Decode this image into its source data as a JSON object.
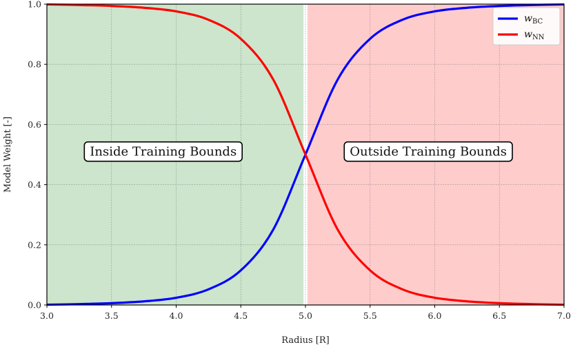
{
  "chart_data": {
    "type": "line",
    "xlabel": "Radius [R]",
    "ylabel": "Model Weight [-]",
    "xlim": [
      3.0,
      7.0
    ],
    "ylim": [
      0.0,
      1.0
    ],
    "xticks": [
      "3.0",
      "3.5",
      "4.0",
      "4.5",
      "5.0",
      "5.5",
      "6.0",
      "6.5",
      "7.0"
    ],
    "yticks": [
      "0.0",
      "0.2",
      "0.4",
      "0.6",
      "0.8",
      "1.0"
    ],
    "grid": true,
    "legend_position": "top-right",
    "regions": [
      {
        "label": "Inside Training Bounds",
        "x_range": [
          3.0,
          4.985
        ],
        "color": "#cce5cc",
        "label_x": 3.9,
        "label_y": 0.51
      },
      {
        "label": "Outside Training Bounds",
        "x_range": [
          5.015,
          7.0
        ],
        "color": "#ffcccc",
        "label_x": 5.95,
        "label_y": 0.51
      }
    ],
    "x": [
      3.0,
      3.25,
      3.5,
      3.75,
      4.0,
      4.25,
      4.5,
      4.75,
      5.0,
      5.25,
      5.5,
      5.75,
      6.0,
      6.25,
      6.5,
      6.75,
      7.0
    ],
    "series": [
      {
        "name": "w",
        "subscript": "BC",
        "color": "#0000ff",
        "values": [
          0.001,
          0.003,
          0.006,
          0.012,
          0.024,
          0.052,
          0.115,
          0.25,
          0.5,
          0.75,
          0.885,
          0.948,
          0.976,
          0.988,
          0.994,
          0.997,
          0.999
        ]
      },
      {
        "name": "w",
        "subscript": "NN",
        "color": "#ff0000",
        "values": [
          0.999,
          0.997,
          0.994,
          0.988,
          0.976,
          0.948,
          0.885,
          0.75,
          0.5,
          0.25,
          0.115,
          0.052,
          0.024,
          0.012,
          0.006,
          0.003,
          0.001
        ]
      }
    ]
  }
}
